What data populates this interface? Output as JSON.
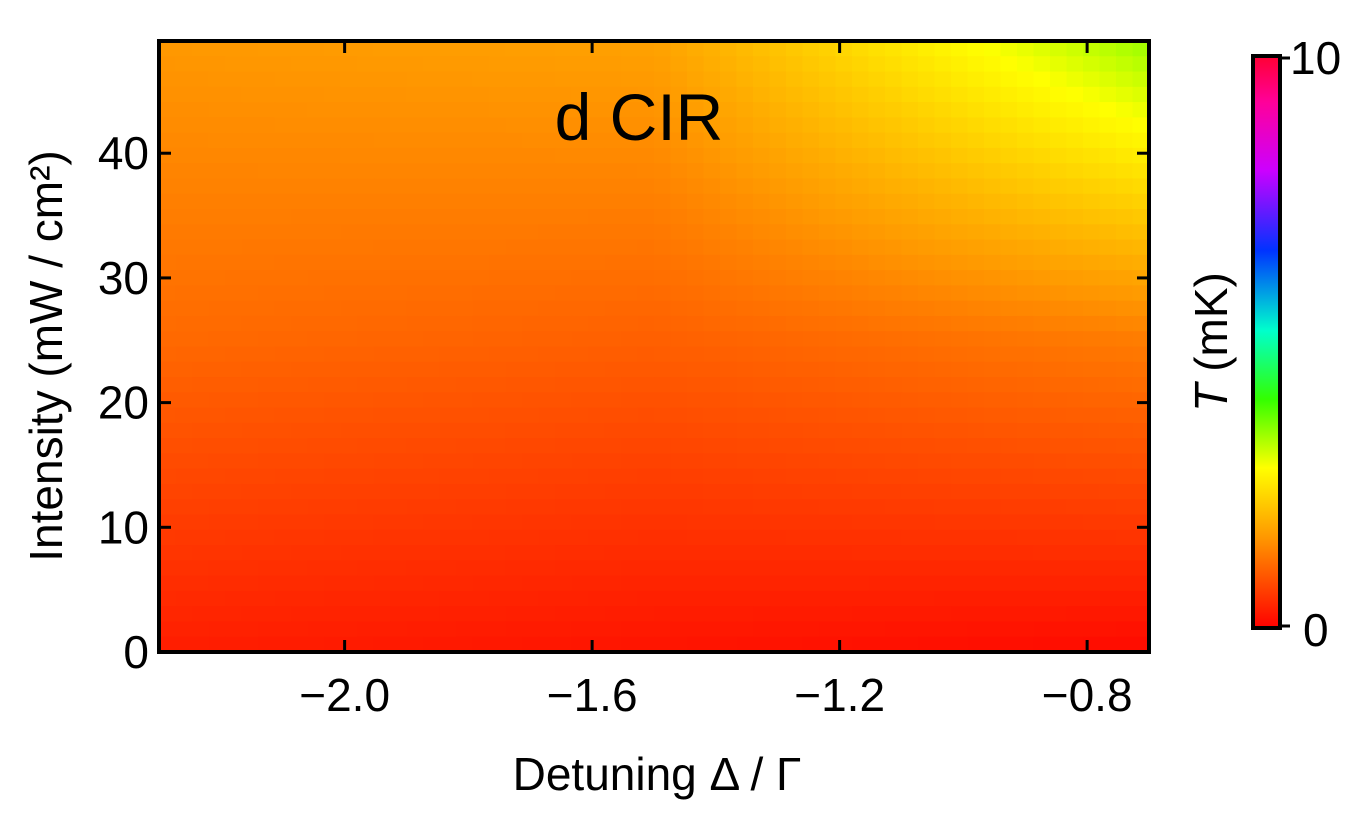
{
  "chart_data": {
    "type": "heatmap",
    "title": "d CIR",
    "xlabel": "Detuning Δ / Γ",
    "ylabel": "Intensity (mW / cm²)",
    "xlim": [
      -2.3,
      -0.7
    ],
    "ylim": [
      0,
      49
    ],
    "x_ticks": [
      -2.0,
      -1.6,
      -1.2,
      -0.8
    ],
    "x_tick_labels": [
      "−2.0",
      "−1.6",
      "−1.2",
      "−0.8"
    ],
    "y_ticks": [
      0,
      10,
      20,
      30,
      40
    ],
    "y_tick_labels": [
      "0",
      "10",
      "20",
      "30",
      "40"
    ],
    "colorbar": {
      "label": "T (mK)",
      "label_var": "T",
      "label_unit": "(mK)",
      "min": 0,
      "max": 10,
      "tick_labels": [
        "0",
        "10"
      ],
      "colormap": "rainbow (red → yellow → green → cyan → blue → magenta → red)"
    },
    "grid": false,
    "z_description": "Temperature increases with intensity and toward less negative detuning",
    "z_samples": {
      "x": [
        -2.3,
        -1.5,
        -0.7
      ],
      "y": [
        0,
        25,
        49
      ],
      "T_mK": [
        [
          0.3,
          0.2,
          0.1
        ],
        [
          1.1,
          1.0,
          1.3
        ],
        [
          1.6,
          1.7,
          3.4
        ]
      ]
    }
  }
}
